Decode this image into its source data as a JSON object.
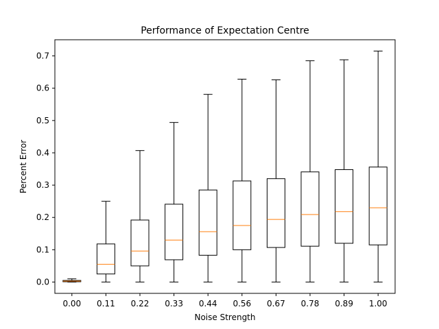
{
  "chart_data": {
    "type": "box",
    "title": "Performance of Expectation Centre",
    "xlabel": "Noise Strength",
    "ylabel": "Percent Error",
    "categories": [
      "0.00",
      "0.11",
      "0.22",
      "0.33",
      "0.44",
      "0.56",
      "0.67",
      "0.78",
      "0.89",
      "1.00"
    ],
    "ylim": [
      -0.035,
      0.75
    ],
    "yticks": [
      0.0,
      0.1,
      0.2,
      0.3,
      0.4,
      0.5,
      0.6,
      0.7
    ],
    "ytick_labels": [
      "0.0",
      "0.1",
      "0.2",
      "0.3",
      "0.4",
      "0.5",
      "0.6",
      "0.7"
    ],
    "grid": false,
    "boxes": [
      {
        "category": "0.00",
        "whisker_low": 0.0,
        "q1": 0.001,
        "median": 0.003,
        "q3": 0.005,
        "whisker_high": 0.01
      },
      {
        "category": "0.11",
        "whisker_low": 0.0,
        "q1": 0.025,
        "median": 0.055,
        "q3": 0.118,
        "whisker_high": 0.25
      },
      {
        "category": "0.22",
        "whisker_low": 0.0,
        "q1": 0.05,
        "median": 0.096,
        "q3": 0.192,
        "whisker_high": 0.407
      },
      {
        "category": "0.33",
        "whisker_low": 0.0,
        "q1": 0.069,
        "median": 0.13,
        "q3": 0.241,
        "whisker_high": 0.494
      },
      {
        "category": "0.44",
        "whisker_low": 0.0,
        "q1": 0.083,
        "median": 0.156,
        "q3": 0.285,
        "whisker_high": 0.581
      },
      {
        "category": "0.56",
        "whisker_low": 0.0,
        "q1": 0.1,
        "median": 0.175,
        "q3": 0.313,
        "whisker_high": 0.628
      },
      {
        "category": "0.67",
        "whisker_low": 0.0,
        "q1": 0.107,
        "median": 0.194,
        "q3": 0.32,
        "whisker_high": 0.626
      },
      {
        "category": "0.78",
        "whisker_low": 0.0,
        "q1": 0.111,
        "median": 0.209,
        "q3": 0.341,
        "whisker_high": 0.685
      },
      {
        "category": "0.89",
        "whisker_low": 0.0,
        "q1": 0.12,
        "median": 0.218,
        "q3": 0.348,
        "whisker_high": 0.688
      },
      {
        "category": "1.00",
        "whisker_low": 0.0,
        "q1": 0.115,
        "median": 0.23,
        "q3": 0.356,
        "whisker_high": 0.715
      }
    ],
    "colors": {
      "box": "#000000",
      "median": "#ff7f0e",
      "axes": "#000000"
    }
  }
}
